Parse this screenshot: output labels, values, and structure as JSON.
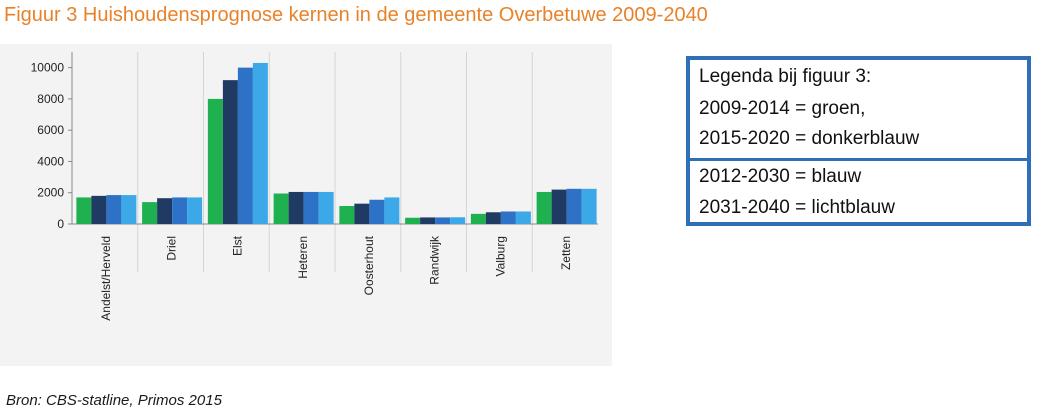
{
  "title": "Figuur 3 Huishoudensprognose kernen in de gemeente Overbetuwe 2009-2040",
  "source": "Bron: CBS-statline, Primos 2015",
  "legend_box": {
    "lines_top": [
      "Legenda bij figuur 3:",
      "2009-2014 = groen,",
      "2015-2020 = donkerblauw"
    ],
    "lines_bottom": [
      "2012-2030 = blauw",
      "2031-2040 = lichtblauw"
    ]
  },
  "colors": {
    "title": "#e8822a",
    "groen": "#1fb050",
    "donkerblauw": "#1f3a63",
    "blauw": "#2e72c7",
    "lichtblauw": "#3ca8e8",
    "legend_border": "#2f6fb7"
  },
  "chart_data": {
    "type": "bar",
    "style": "3d-column",
    "categories": [
      "Andelst/Herveld",
      "Driel",
      "Elst",
      "Heteren",
      "Oosterhout",
      "Randwijk",
      "Valburg",
      "Zetten"
    ],
    "series": [
      {
        "name": "2009-2014",
        "color": "#1fb050",
        "values": [
          1700,
          1400,
          8000,
          1950,
          1150,
          400,
          650,
          2050
        ]
      },
      {
        "name": "2015-2020",
        "color": "#1f3a63",
        "values": [
          1800,
          1650,
          9200,
          2050,
          1300,
          420,
          750,
          2200
        ]
      },
      {
        "name": "2012-2030",
        "color": "#2e72c7",
        "values": [
          1850,
          1700,
          10000,
          2050,
          1550,
          420,
          800,
          2250
        ]
      },
      {
        "name": "2031-2040",
        "color": "#3ca8e8",
        "values": [
          1850,
          1700,
          10300,
          2050,
          1700,
          430,
          800,
          2250
        ]
      }
    ],
    "yticks": [
      0,
      2000,
      4000,
      6000,
      8000,
      10000
    ],
    "ylim": [
      0,
      11000
    ],
    "grid": true
  }
}
